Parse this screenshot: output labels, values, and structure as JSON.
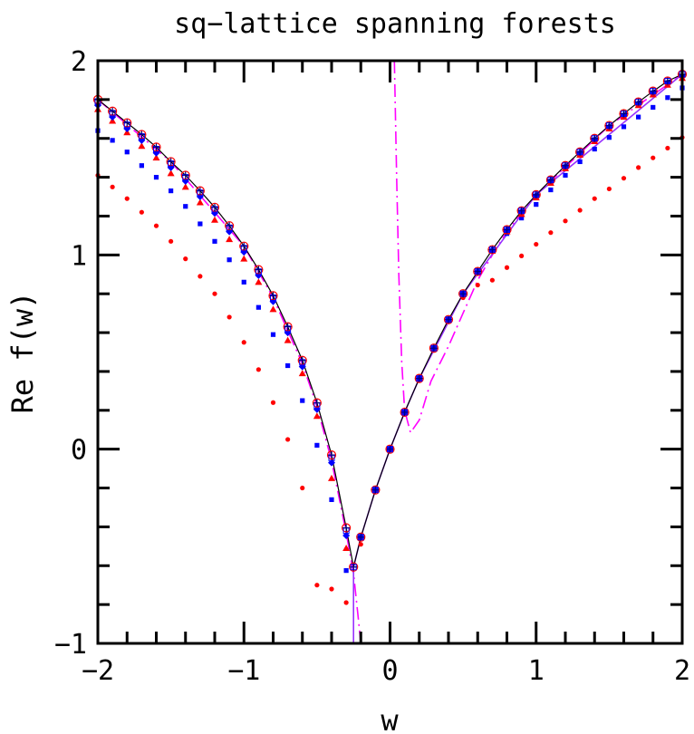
{
  "chart_data": {
    "type": "scatter",
    "title": "sq−lattice spanning forests",
    "xlabel": "w",
    "ylabel": "Re f(w)",
    "xlim": [
      -2,
      2
    ],
    "ylim": [
      -1,
      2
    ],
    "xticks": [
      -2,
      -1,
      0,
      1,
      2
    ],
    "xtick_labels": [
      "−2",
      "−1",
      "0",
      "1",
      "2"
    ],
    "yticks": [
      -1,
      0,
      1,
      2
    ],
    "ytick_labels": [
      "−1",
      "0",
      "1",
      "2"
    ],
    "grid": false,
    "x": [
      -2,
      -1.9,
      -1.8,
      -1.7,
      -1.6,
      -1.5,
      -1.4,
      -1.3,
      -1.2,
      -1.1,
      -1,
      -0.9,
      -0.8,
      -0.7,
      -0.6,
      -0.5,
      -0.4,
      -0.3,
      -0.25,
      -0.2,
      -0.1,
      0,
      0.1,
      0.2,
      0.3,
      0.4,
      0.5,
      0.6,
      0.7,
      0.8,
      0.9,
      1,
      1.1,
      1.2,
      1.3,
      1.4,
      1.5,
      1.6,
      1.7,
      1.8,
      1.9,
      2
    ],
    "line": {
      "color": "#000000",
      "values": [
        1.8,
        1.74,
        1.68,
        1.62,
        1.555,
        1.48,
        1.41,
        1.33,
        1.245,
        1.15,
        1.045,
        0.924,
        0.79,
        0.63,
        0.457,
        0.238,
        -0.03,
        -0.405,
        -0.607,
        -0.453,
        -0.21,
        0,
        0.19,
        0.364,
        0.52,
        0.667,
        0.8,
        0.915,
        1.027,
        1.13,
        1.227,
        1.31,
        1.386,
        1.46,
        1.53,
        1.6,
        1.666,
        1.727,
        1.787,
        1.843,
        1.895,
        1.93
      ]
    },
    "series": [
      {
        "marker": "circle-filled",
        "color": "#ff0000",
        "values": [
          1.41,
          1.35,
          1.29,
          1.22,
          1.15,
          1.07,
          0.98,
          0.89,
          0.8,
          0.68,
          0.55,
          0.41,
          0.24,
          0.05,
          -0.2,
          -0.7,
          -0.72,
          -0.79,
          null,
          -0.49,
          -0.21,
          0,
          0.19,
          0.364,
          0.52,
          0.66,
          0.78,
          0.845,
          0.87,
          0.935,
          0.995,
          1.055,
          1.115,
          1.175,
          1.23,
          1.29,
          1.34,
          1.395,
          1.45,
          1.5,
          1.55,
          1.605
        ]
      },
      {
        "marker": "square",
        "color": "#0000ff",
        "values": [
          1.64,
          1.59,
          1.53,
          1.46,
          1.4,
          1.33,
          1.25,
          1.16,
          1.07,
          0.975,
          0.86,
          0.73,
          0.59,
          0.43,
          0.25,
          0.02,
          -0.26,
          -0.625,
          null,
          -0.453,
          -0.21,
          0,
          0.19,
          0.364,
          0.52,
          0.667,
          0.8,
          0.91,
          1.02,
          1.11,
          1.19,
          1.26,
          1.335,
          1.41,
          1.48,
          1.545,
          1.605,
          1.66,
          1.71,
          1.76,
          1.81,
          1.86
        ]
      },
      {
        "marker": "triangle",
        "color": "#ff0000",
        "values": [
          1.75,
          1.69,
          1.63,
          1.56,
          1.5,
          1.42,
          1.35,
          1.27,
          1.18,
          1.08,
          0.98,
          0.86,
          0.72,
          0.56,
          0.39,
          0.17,
          -0.15,
          -0.51,
          null,
          -0.453,
          -0.21,
          0,
          0.19,
          0.364,
          0.52,
          0.667,
          0.8,
          0.912,
          1.02,
          1.12,
          1.21,
          1.295,
          1.37,
          1.445,
          1.515,
          1.585,
          1.65,
          1.71,
          1.77,
          1.825,
          1.875,
          1.91
        ]
      },
      {
        "marker": "diamond",
        "color": "#0000ff",
        "values": [
          1.77,
          1.71,
          1.65,
          1.59,
          1.525,
          1.45,
          1.38,
          1.3,
          1.215,
          1.12,
          1.015,
          0.895,
          0.76,
          0.6,
          0.425,
          0.205,
          -0.07,
          -0.445,
          null,
          -0.453,
          -0.21,
          0,
          0.19,
          0.364,
          0.52,
          0.667,
          0.8,
          0.915,
          1.025,
          1.128,
          1.224,
          1.306,
          1.382,
          1.455,
          1.525,
          1.594,
          1.66,
          1.72,
          1.78,
          1.835,
          1.887,
          1.92
        ]
      },
      {
        "marker": "open-circle",
        "color": "#ff0000",
        "values": [
          1.8,
          1.74,
          1.68,
          1.62,
          1.555,
          1.48,
          1.41,
          1.33,
          1.245,
          1.15,
          1.045,
          0.924,
          0.79,
          0.63,
          0.457,
          0.238,
          -0.03,
          -0.405,
          -0.607,
          -0.453,
          -0.21,
          0,
          0.19,
          0.364,
          0.52,
          0.667,
          0.8,
          0.915,
          1.027,
          1.13,
          1.227,
          1.31,
          1.386,
          1.46,
          1.53,
          1.6,
          1.666,
          1.727,
          1.787,
          1.843,
          1.895,
          1.93
        ]
      },
      {
        "marker": "open-square",
        "color": "#0000ff",
        "values": [
          1.79,
          1.73,
          1.67,
          1.61,
          1.545,
          1.47,
          1.4,
          1.32,
          1.235,
          1.14,
          1.035,
          0.914,
          0.78,
          0.62,
          0.447,
          0.225,
          -0.045,
          -0.42,
          -0.607,
          -0.453,
          -0.21,
          0,
          0.19,
          0.364,
          0.52,
          0.667,
          0.8,
          0.915,
          1.027,
          1.13,
          1.227,
          1.31,
          1.386,
          1.46,
          1.53,
          1.6,
          1.666,
          1.727,
          1.787,
          1.843,
          1.895,
          1.93
        ]
      },
      {
        "marker": "cross",
        "color": "#000080",
        "values": [
          1.8,
          1.74,
          1.68,
          1.62,
          1.555,
          1.48,
          1.41,
          1.33,
          1.245,
          1.15,
          1.045,
          0.924,
          0.79,
          0.63,
          0.457,
          0.238,
          -0.03,
          -0.405,
          -0.607,
          -0.453,
          -0.21,
          0,
          0.19,
          0.364,
          0.52,
          0.667,
          0.8,
          0.915,
          1.027,
          1.13,
          1.227,
          1.31,
          1.386,
          1.46,
          1.53,
          1.6,
          1.666,
          1.727,
          1.787,
          1.843,
          1.895,
          1.93
        ]
      }
    ],
    "curves": [
      {
        "style": "dash-dot",
        "color": "#ff00ff",
        "points": [
          [
            -2,
            1.8
          ],
          [
            -1.5,
            1.48
          ],
          [
            -1,
            1.045
          ],
          [
            -0.8,
            0.78
          ],
          [
            -0.6,
            0.44
          ],
          [
            -0.5,
            0.22
          ],
          [
            -0.4,
            -0.06
          ],
          [
            -0.3,
            -0.43
          ],
          [
            -0.25,
            -0.64
          ],
          [
            -0.22,
            -0.85
          ],
          [
            -0.2,
            -1.0
          ]
        ]
      },
      {
        "style": "dash-dot",
        "color": "#ff00ff",
        "points": [
          [
            0.03,
            2.0
          ],
          [
            0.045,
            1.4
          ],
          [
            0.06,
            0.9
          ],
          [
            0.08,
            0.45
          ],
          [
            0.1,
            0.2
          ],
          [
            0.14,
            0.085
          ],
          [
            0.2,
            0.15
          ],
          [
            0.28,
            0.35
          ],
          [
            0.4,
            0.53
          ],
          [
            0.5,
            0.7
          ],
          [
            0.6,
            0.87
          ],
          [
            0.7,
            1.0
          ],
          [
            0.8,
            1.12
          ],
          [
            1,
            1.31
          ],
          [
            1.5,
            1.666
          ],
          [
            2,
            1.93
          ]
        ]
      },
      {
        "style": "solid",
        "color": "#9933ff",
        "points": [
          [
            -0.25,
            -1.0
          ],
          [
            -0.25,
            -0.607
          ],
          [
            -0.2,
            -0.453
          ],
          [
            -0.1,
            -0.21
          ],
          [
            0,
            0
          ],
          [
            0.1,
            0.19
          ],
          [
            0.2,
            0.364
          ],
          [
            0.5,
            0.8
          ],
          [
            1,
            1.31
          ],
          [
            2,
            1.93
          ]
        ]
      }
    ]
  }
}
